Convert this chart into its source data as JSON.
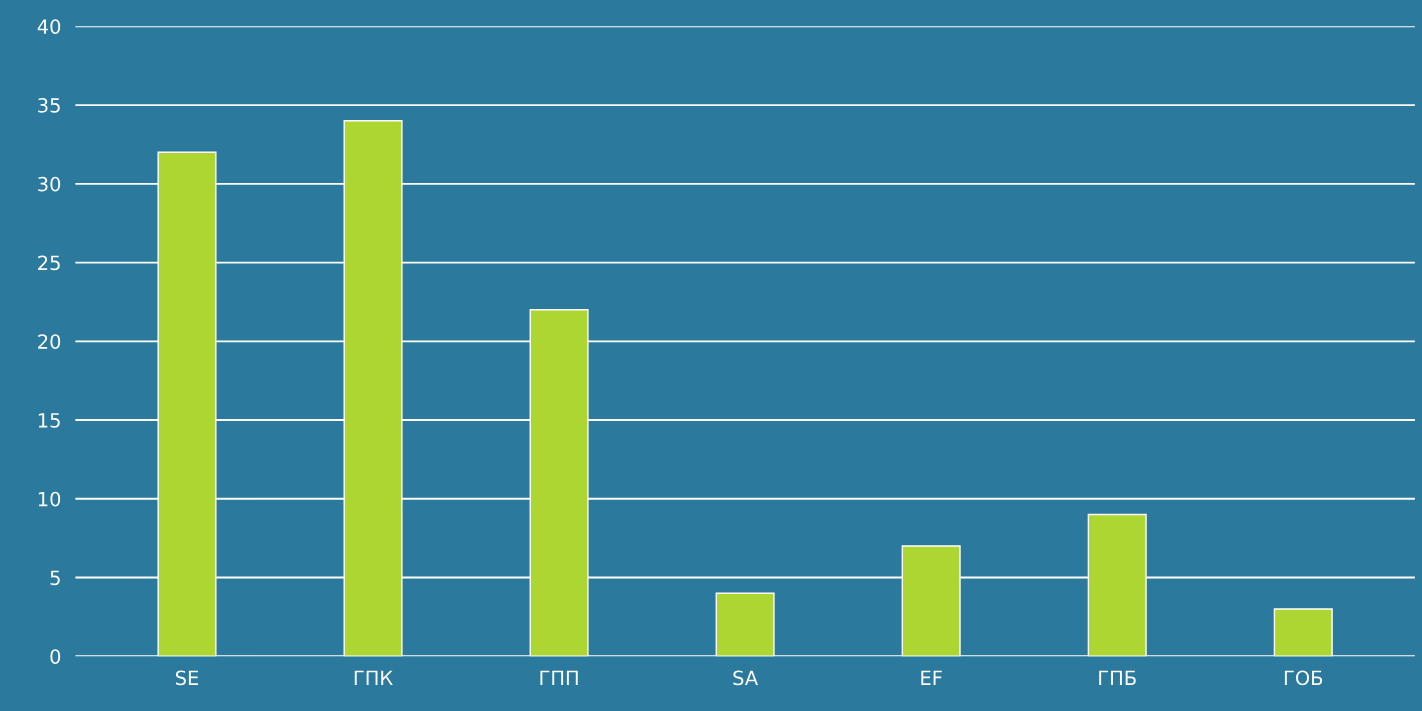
{
  "chart_data": {
    "type": "bar",
    "categories": [
      "SE",
      "ГПК",
      "ГПП",
      "SA",
      "EF",
      "ГПБ",
      "ГОБ"
    ],
    "values": [
      32,
      34,
      22,
      4,
      7,
      9,
      3
    ],
    "color": "#add633",
    "ylim": [
      0,
      40
    ],
    "yticks": [
      0,
      5,
      10,
      15,
      20,
      25,
      30,
      35,
      40
    ],
    "grid": "y",
    "legend": false
  }
}
